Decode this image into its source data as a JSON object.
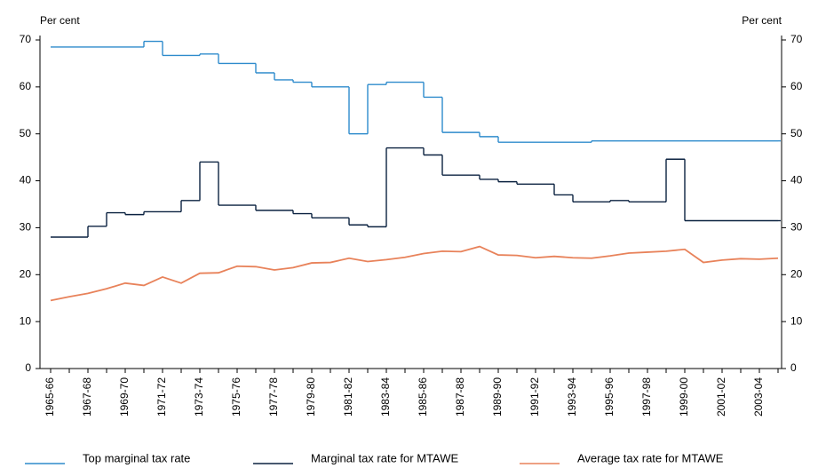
{
  "chart_data": {
    "type": "line",
    "y_label": "Per cent",
    "y2_label": "Per cent",
    "categories": [
      "1965-66",
      null,
      "1967-68",
      null,
      "1969-70",
      null,
      "1971-72",
      null,
      "1973-74",
      null,
      "1975-76",
      null,
      "1977-78",
      null,
      "1979-80",
      null,
      "1981-82",
      null,
      "1983-84",
      null,
      "1985-86",
      null,
      "1987-88",
      null,
      "1989-90",
      null,
      "1991-92",
      null,
      "1993-94",
      null,
      "1995-96",
      null,
      "1997-98",
      null,
      "1999-00",
      null,
      "2001-02",
      null,
      "2003-04",
      null
    ],
    "series": [
      {
        "name": "Top marginal tax rate",
        "color": "#2e8bcc",
        "step": true,
        "values": [
          68.5,
          68.5,
          68.5,
          68.5,
          68.5,
          69.7,
          66.7,
          66.7,
          67.0,
          65.0,
          65.0,
          63.0,
          61.5,
          61.0,
          60.0,
          60.0,
          50.0,
          60.5,
          61.0,
          61.0,
          57.8,
          50.3,
          50.3,
          49.4,
          48.2,
          48.2,
          48.2,
          48.2,
          48.2,
          48.5,
          48.5,
          48.5,
          48.5,
          48.5,
          48.5,
          48.5,
          48.5,
          48.5,
          48.5,
          48.5
        ]
      },
      {
        "name": "Marginal tax rate for MTAWE",
        "color": "#0b2240",
        "step": true,
        "values": [
          28.0,
          28.0,
          30.3,
          33.2,
          32.8,
          33.4,
          33.4,
          35.8,
          44.0,
          34.8,
          34.8,
          33.7,
          33.7,
          33.0,
          32.1,
          32.1,
          30.6,
          30.2,
          47.0,
          47.0,
          45.5,
          41.2,
          41.2,
          40.3,
          39.8,
          39.3,
          39.3,
          37.0,
          35.5,
          35.5,
          35.8,
          35.5,
          35.5,
          44.6,
          31.5,
          31.5,
          31.5,
          31.5,
          31.5,
          31.5
        ]
      },
      {
        "name": "Average tax rate for MTAWE",
        "color": "#e8825a",
        "step": false,
        "values": [
          14.5,
          15.3,
          16.0,
          17.0,
          18.2,
          17.7,
          19.5,
          18.2,
          20.3,
          20.4,
          21.8,
          21.7,
          21.0,
          21.5,
          22.5,
          22.6,
          23.5,
          22.8,
          23.2,
          23.7,
          24.5,
          25.0,
          24.9,
          26.0,
          24.2,
          24.1,
          23.6,
          23.9,
          23.6,
          23.5,
          24.0,
          24.6,
          24.8,
          25.0,
          25.4,
          22.6,
          23.1,
          23.4,
          23.3,
          23.5
        ]
      }
    ],
    "ylim": [
      0,
      70
    ],
    "yticks": [
      0,
      10,
      20,
      30,
      40,
      50,
      60,
      70
    ],
    "y2lim": [
      0,
      70
    ],
    "y2ticks": [
      0,
      10,
      20,
      30,
      40,
      50,
      60,
      70
    ],
    "grid": false,
    "legend": "bottom"
  }
}
